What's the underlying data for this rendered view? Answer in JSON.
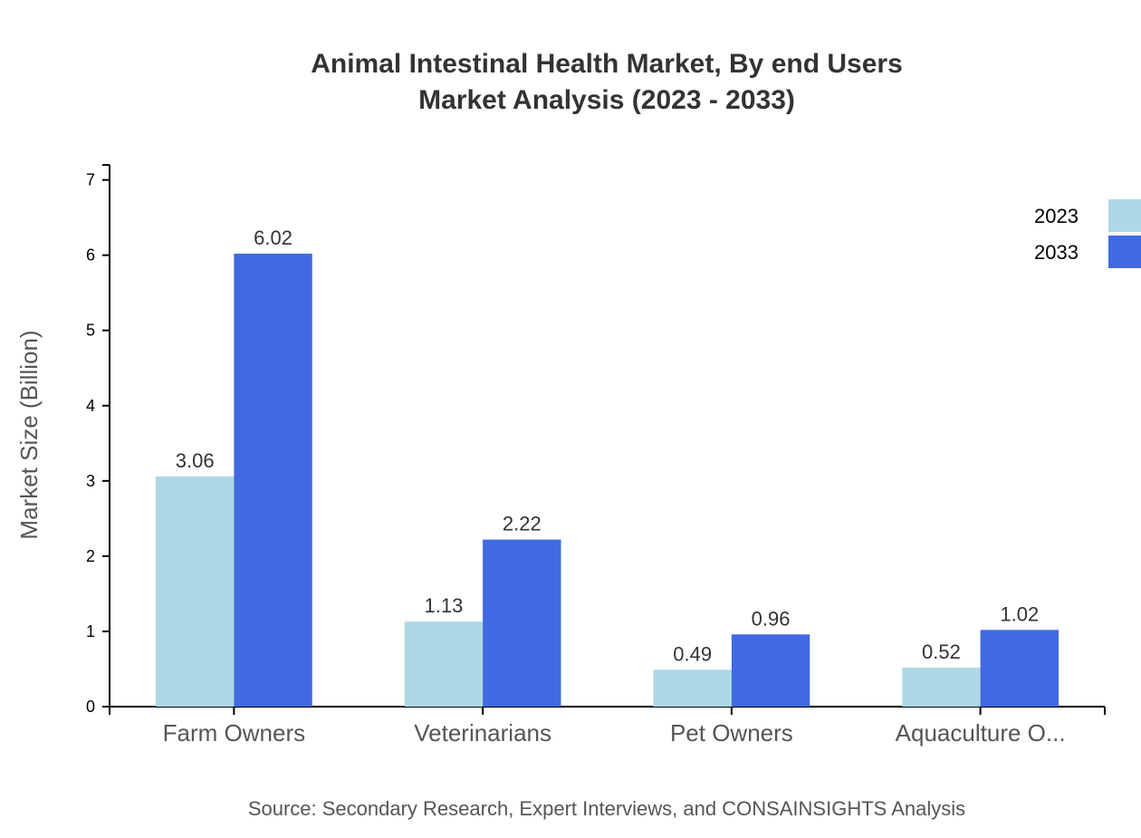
{
  "chart_data": {
    "type": "bar",
    "title": "Animal Intestinal Health Market, By end Users",
    "subtitle": "Market Analysis (2023 - 2033)",
    "xlabel": "",
    "ylabel": "Market Size (Billion)",
    "ylim": [
      0,
      7.2
    ],
    "yticks": [
      0,
      1,
      2,
      3,
      4,
      5,
      6,
      7
    ],
    "grid": false,
    "legend_position": "top-right",
    "categories": [
      "Farm Owners",
      "Veterinarians",
      "Pet Owners",
      "Aquaculture O..."
    ],
    "series": [
      {
        "name": "2023",
        "color": "#add8e6",
        "values": [
          3.06,
          1.13,
          0.49,
          0.52
        ]
      },
      {
        "name": "2033",
        "color": "#4169e1",
        "values": [
          6.02,
          2.22,
          0.96,
          1.02
        ]
      }
    ],
    "source": "Source: Secondary Research, Expert Interviews, and CONSAINSIGHTS Analysis"
  }
}
